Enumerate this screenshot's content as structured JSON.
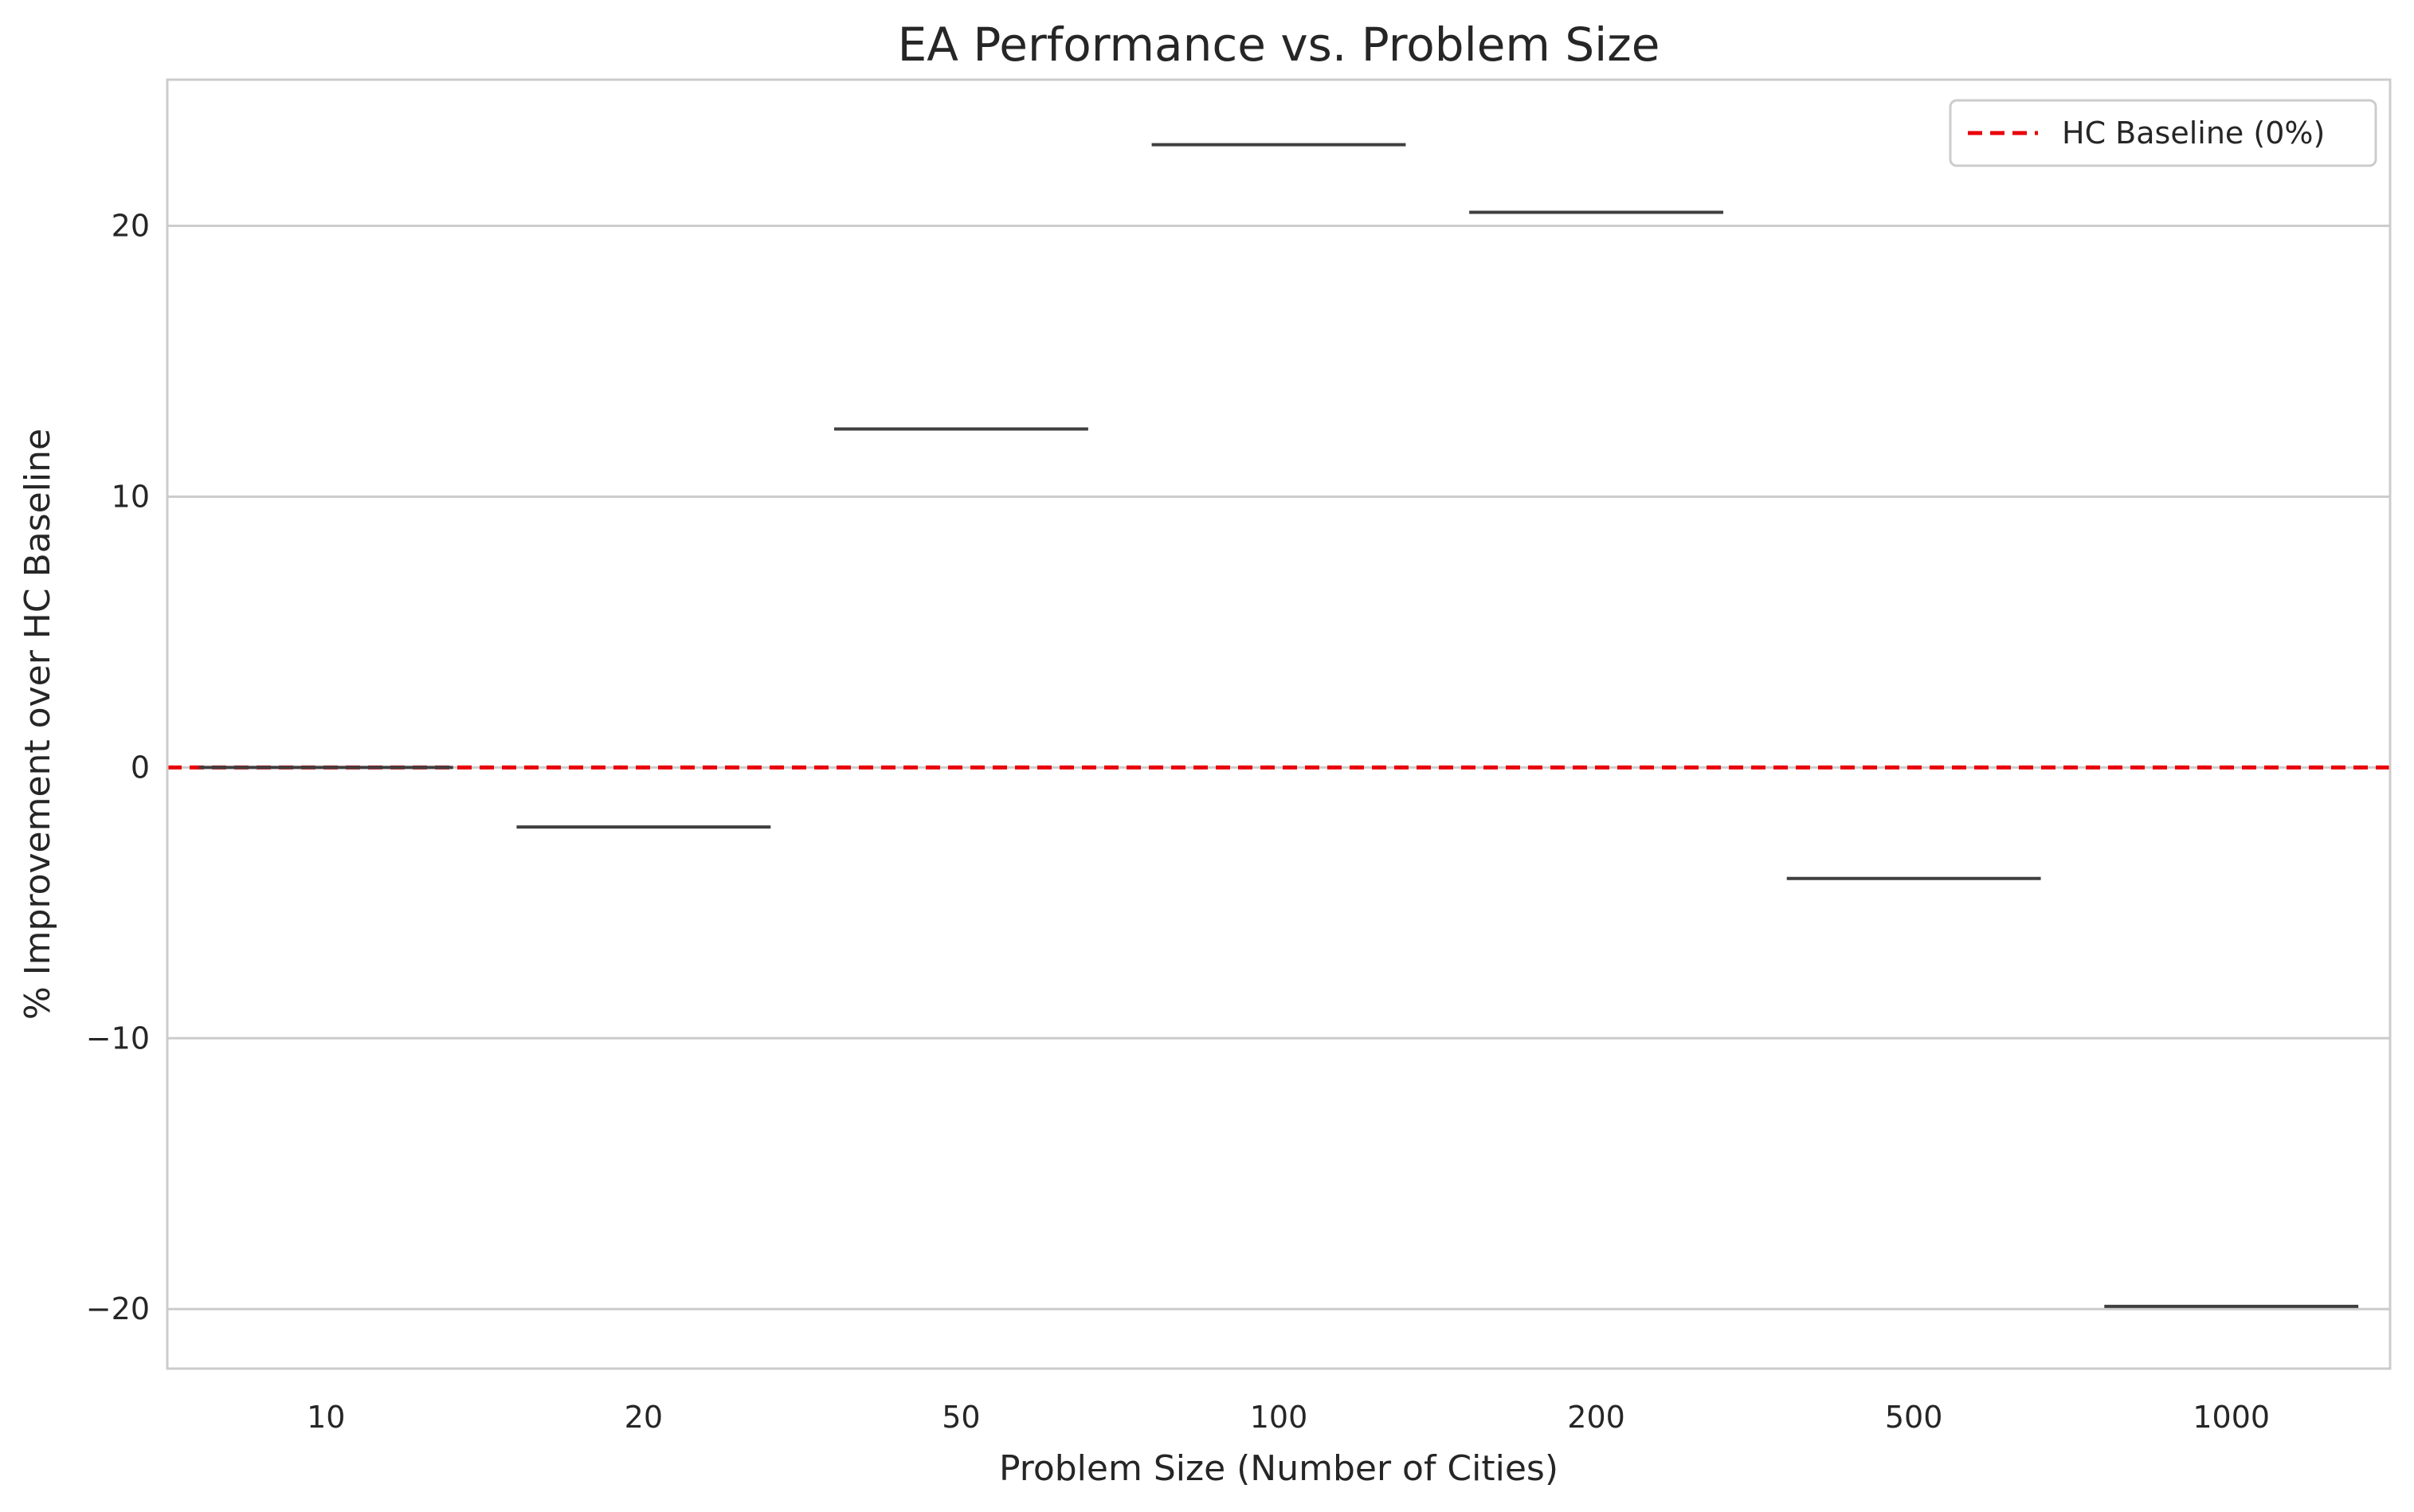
{
  "chart_data": {
    "type": "box",
    "title": "EA Performance vs. Problem Size",
    "xlabel": "Problem Size (Number of Cities)",
    "ylabel": "% Improvement over HC Baseline",
    "categories": [
      "10",
      "20",
      "50",
      "100",
      "200",
      "500",
      "1000"
    ],
    "values": [
      0.0,
      -2.2,
      12.5,
      23.0,
      20.5,
      -4.1,
      -19.9
    ],
    "ylim": [
      -22.2,
      25.4
    ],
    "yticks": [
      -20,
      -10,
      0,
      10,
      20
    ],
    "ytick_labels": [
      "−20",
      "−10",
      "0",
      "10",
      "20"
    ],
    "grid": "horizontal",
    "legend_position": "top-right",
    "baseline": {
      "value": 0,
      "label": "HC Baseline (0%)",
      "color": "#e8000b",
      "style": "dashed"
    },
    "colors": {
      "box_line": "#3f3f3f",
      "grid": "#cccccc",
      "spine": "#cccccc"
    }
  }
}
